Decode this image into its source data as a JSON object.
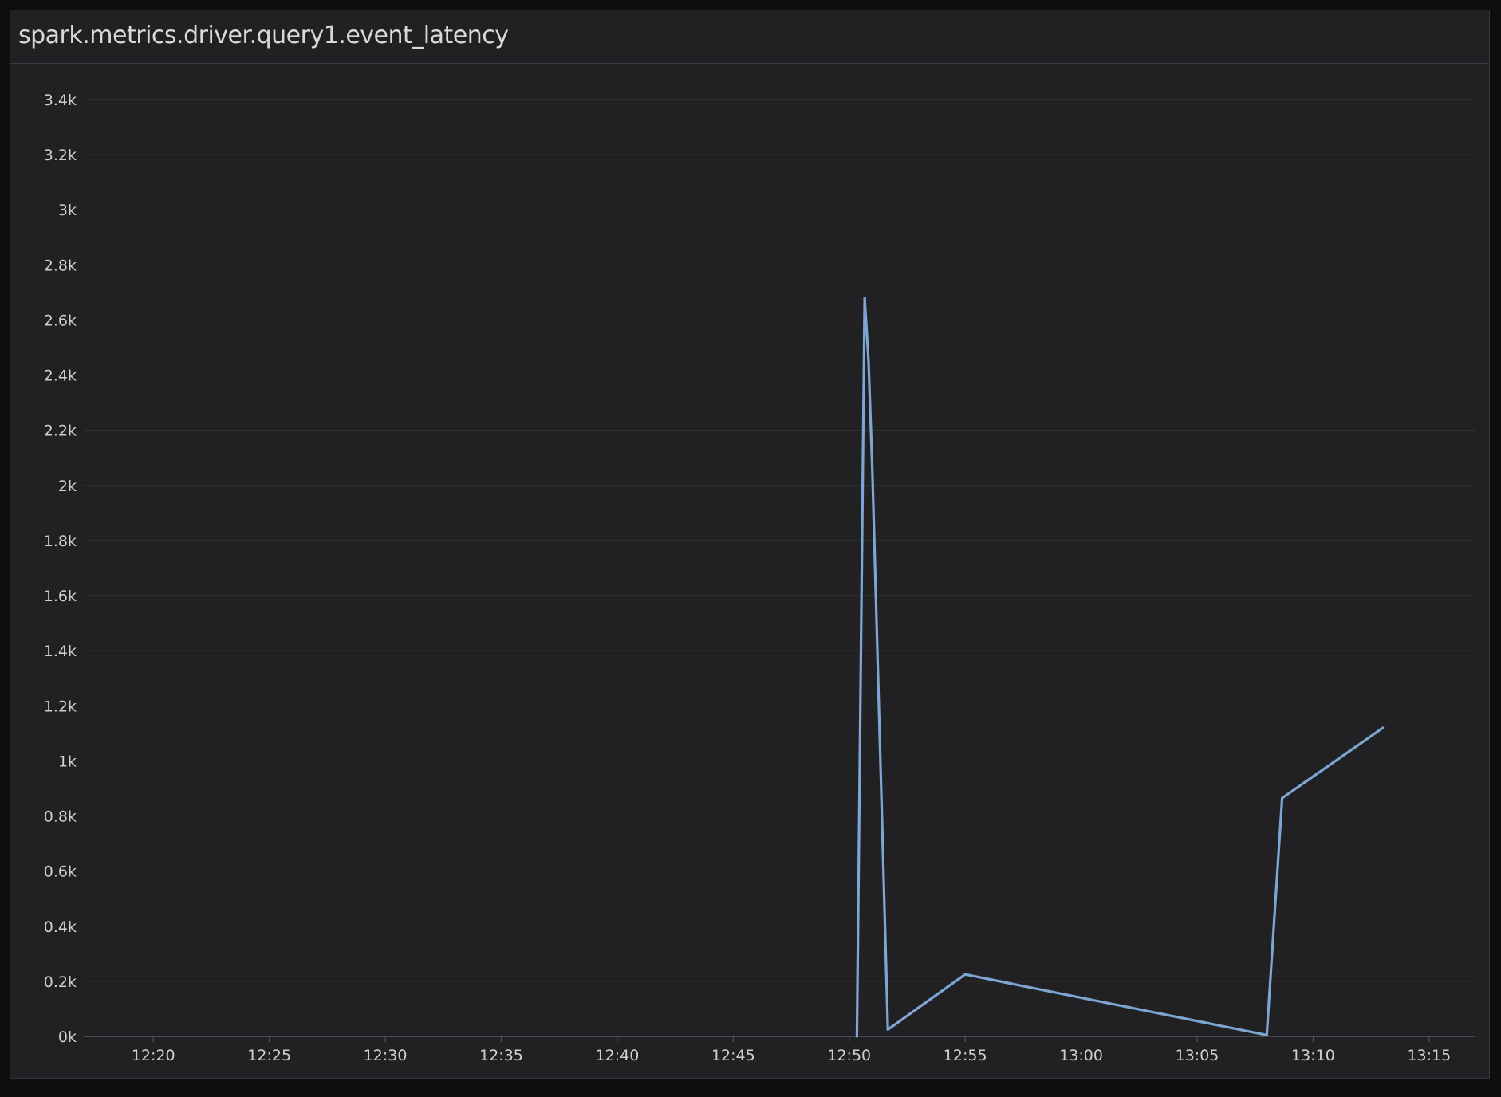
{
  "panel": {
    "title": "spark.metrics.driver.query1.event_latency"
  },
  "colors": {
    "background": "#212124",
    "grid": "#35363b",
    "series": "#7ea6d3",
    "text": "#cfd0d2"
  },
  "chart_data": {
    "type": "line",
    "title": "spark.metrics.driver.query1.event_latency",
    "xlabel": "",
    "ylabel": "",
    "grid": true,
    "x_unit": "time (HH:MM)",
    "xlim": [
      "12:17",
      "13:17"
    ],
    "ylim": [
      0,
      3400
    ],
    "x_ticks": [
      "12:20",
      "12:25",
      "12:30",
      "12:35",
      "12:40",
      "12:45",
      "12:50",
      "12:55",
      "13:00",
      "13:05",
      "13:10",
      "13:15"
    ],
    "y_ticks": [
      {
        "value": 0,
        "label": "0k"
      },
      {
        "value": 200,
        "label": "0.2k"
      },
      {
        "value": 400,
        "label": "0.4k"
      },
      {
        "value": 600,
        "label": "0.6k"
      },
      {
        "value": 800,
        "label": "0.8k"
      },
      {
        "value": 1000,
        "label": "1k"
      },
      {
        "value": 1200,
        "label": "1.2k"
      },
      {
        "value": 1400,
        "label": "1.4k"
      },
      {
        "value": 1600,
        "label": "1.6k"
      },
      {
        "value": 1800,
        "label": "1.8k"
      },
      {
        "value": 2000,
        "label": "2k"
      },
      {
        "value": 2200,
        "label": "2.2k"
      },
      {
        "value": 2400,
        "label": "2.4k"
      },
      {
        "value": 2600,
        "label": "2.6k"
      },
      {
        "value": 2800,
        "label": "2.8k"
      },
      {
        "value": 3000,
        "label": "3k"
      },
      {
        "value": 3200,
        "label": "3.2k"
      },
      {
        "value": 3400,
        "label": "3.4k"
      }
    ],
    "series": [
      {
        "color": "#7ea6d3",
        "points": [
          {
            "x": "12:50:20",
            "y": 0
          },
          {
            "x": "12:50:40",
            "y": 2680
          },
          {
            "x": "12:50:50",
            "y": 2450
          },
          {
            "x": "12:51:00",
            "y": 2050
          },
          {
            "x": "12:51:40",
            "y": 25
          },
          {
            "x": "12:55:00",
            "y": 225
          },
          {
            "x": "13:08:00",
            "y": 5
          },
          {
            "x": "13:08:40",
            "y": 865
          },
          {
            "x": "13:12:40",
            "y": 1100
          },
          {
            "x": "13:13:00",
            "y": 1120
          }
        ]
      }
    ]
  }
}
